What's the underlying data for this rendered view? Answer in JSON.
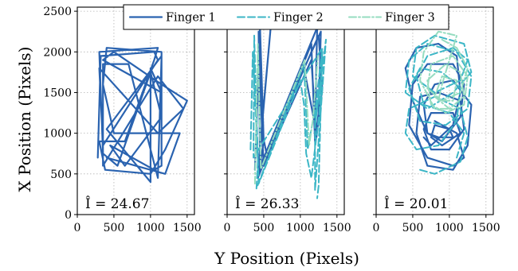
{
  "chart_data": {
    "type": "line",
    "xlabel": "Y Position (Pixels)",
    "ylabel": "X Position (Pixels)",
    "xlim": [
      0,
      1600
    ],
    "ylim": [
      0,
      2550
    ],
    "xticks": [
      0,
      500,
      1000,
      1500
    ],
    "yticks": [
      0,
      500,
      1000,
      1500,
      2000,
      2500
    ],
    "grid": true,
    "legend": {
      "placement": "top-center",
      "entries": [
        "Finger 1",
        "Finger 2",
        "Finger 3"
      ]
    },
    "styles": [
      {
        "color": "#2a63b0",
        "dash": "",
        "width": 2.2
      },
      {
        "color": "#3cb6c6",
        "dash": "9 4",
        "width": 2.0
      },
      {
        "color": "#95dcc0",
        "dash": "9 3 2 3",
        "width": 2.0
      }
    ],
    "panels": [
      {
        "annotation": "Î = 24.67",
        "series": [
          {
            "name": "Finger 1",
            "points": [
              [
                280,
                700
              ],
              [
                320,
                1950
              ],
              [
                1050,
                2000
              ],
              [
                1100,
                1900
              ],
              [
                350,
                850
              ],
              [
                300,
                1800
              ],
              [
                1100,
                1000
              ],
              [
                1450,
                1300
              ],
              [
                1100,
                1700
              ],
              [
                350,
                600
              ],
              [
                350,
                1850
              ],
              [
                700,
                1850
              ],
              [
                1100,
                450
              ],
              [
                1150,
                1950
              ],
              [
                400,
                1050
              ],
              [
                1000,
                400
              ],
              [
                1000,
                1800
              ],
              [
                1150,
                1500
              ],
              [
                350,
                1900
              ],
              [
                500,
                2000
              ],
              [
                1150,
                1600
              ],
              [
                1500,
                1400
              ],
              [
                1200,
                800
              ],
              [
                1000,
                500
              ],
              [
                380,
                550
              ],
              [
                300,
                900
              ],
              [
                650,
                900
              ],
              [
                1050,
                1900
              ],
              [
                1100,
                2050
              ],
              [
                300,
                2000
              ],
              [
                350,
                750
              ],
              [
                550,
                600
              ],
              [
                1000,
                1750
              ],
              [
                1150,
                1200
              ],
              [
                650,
                600
              ],
              [
                450,
                850
              ],
              [
                1050,
                550
              ],
              [
                1150,
                600
              ],
              [
                1150,
                2000
              ],
              [
                400,
                2050
              ],
              [
                350,
                1600
              ],
              [
                500,
                1000
              ],
              [
                900,
                1000
              ],
              [
                1400,
                1000
              ],
              [
                1200,
                500
              ],
              [
                400,
                700
              ]
            ]
          }
        ]
      },
      {
        "annotation": "Î = 26.33",
        "series": [
          {
            "name": "Finger 1",
            "points": [
              [
                380,
                550
              ],
              [
                450,
                2300
              ],
              [
                500,
                900
              ],
              [
                420,
                450
              ],
              [
                1150,
                2100
              ],
              [
                1200,
                900
              ],
              [
                1250,
                1250
              ],
              [
                1280,
                2250
              ],
              [
                450,
                600
              ],
              [
                430,
                2250
              ],
              [
                480,
                950
              ],
              [
                500,
                600
              ],
              [
                1050,
                1800
              ],
              [
                1200,
                1100
              ],
              [
                1230,
                2300
              ],
              [
                420,
                520
              ],
              [
                600,
                2350
              ],
              [
                470,
                1050
              ],
              [
                550,
                700
              ],
              [
                1150,
                1900
              ],
              [
                1220,
                950
              ],
              [
                1300,
                1550
              ],
              [
                1250,
                2200
              ],
              [
                420,
                500
              ]
            ]
          },
          {
            "name": "Finger 2",
            "points": [
              [
                320,
                800
              ],
              [
                350,
                2000
              ],
              [
                420,
                650
              ],
              [
                400,
                320
              ],
              [
                1050,
                1850
              ],
              [
                1100,
                800
              ],
              [
                1180,
                1200
              ],
              [
                1280,
                1650
              ],
              [
                1200,
                1100
              ],
              [
                1350,
                2150
              ],
              [
                1200,
                300
              ],
              [
                1200,
                1250
              ],
              [
                1300,
                2050
              ],
              [
                360,
                700
              ],
              [
                370,
                2200
              ],
              [
                430,
                380
              ],
              [
                1000,
                1650
              ],
              [
                1050,
                1350
              ],
              [
                1080,
                750
              ],
              [
                1150,
                450
              ],
              [
                1260,
                1250
              ],
              [
                1300,
                2000
              ],
              [
                1250,
                350
              ],
              [
                1230,
                200
              ]
            ]
          },
          {
            "name": "Finger 3",
            "points": [
              [
                380,
                380
              ],
              [
                420,
                2100
              ],
              [
                460,
                560
              ],
              [
                1060,
                1900
              ],
              [
                1120,
                850
              ],
              [
                1170,
                1150
              ],
              [
                1240,
                1950
              ]
            ]
          }
        ]
      },
      {
        "annotation": "Î = 20.01",
        "series": [
          {
            "name": "Finger 1",
            "points": [
              [
                800,
                1150
              ],
              [
                1100,
                1000
              ],
              [
                1200,
                700
              ],
              [
                1050,
                600
              ],
              [
                700,
                700
              ],
              [
                450,
                1100
              ],
              [
                500,
                1600
              ],
              [
                700,
                1850
              ],
              [
                1050,
                1850
              ],
              [
                1200,
                1600
              ],
              [
                1150,
                1200
              ],
              [
                900,
                900
              ],
              [
                700,
                1000
              ],
              [
                650,
                1350
              ],
              [
                800,
                1600
              ],
              [
                1050,
                1650
              ],
              [
                1300,
                1350
              ],
              [
                1250,
                850
              ],
              [
                1050,
                550
              ],
              [
                700,
                600
              ],
              [
                550,
                1000
              ],
              [
                600,
                1450
              ],
              [
                850,
                1500
              ],
              [
                1150,
                1400
              ],
              [
                1200,
                1050
              ],
              [
                1000,
                800
              ],
              [
                750,
                800
              ],
              [
                650,
                1050
              ],
              [
                750,
                1250
              ],
              [
                1050,
                1250
              ],
              [
                1150,
                1000
              ],
              [
                900,
                850
              ],
              [
                750,
                950
              ],
              [
                800,
                1100
              ],
              [
                1000,
                1050
              ],
              [
                1050,
                950
              ],
              [
                850,
                950
              ],
              [
                700,
                1000
              ],
              [
                500,
                1400
              ],
              [
                400,
                1800
              ],
              [
                550,
                2050
              ],
              [
                850,
                2100
              ],
              [
                1100,
                1950
              ],
              [
                1150,
                1500
              ],
              [
                1050,
                1100
              ],
              [
                750,
                850
              ],
              [
                650,
                950
              ]
            ]
          },
          {
            "name": "Finger 2",
            "points": [
              [
                600,
                550
              ],
              [
                800,
                500
              ],
              [
                1150,
                650
              ],
              [
                1250,
                950
              ],
              [
                1150,
                1300
              ],
              [
                800,
                1450
              ],
              [
                450,
                1300
              ],
              [
                400,
                1000
              ],
              [
                550,
                800
              ],
              [
                850,
                850
              ],
              [
                1100,
                1150
              ],
              [
                1150,
                1550
              ],
              [
                900,
                1750
              ],
              [
                600,
                1800
              ],
              [
                450,
                1550
              ],
              [
                600,
                1150
              ],
              [
                950,
                1100
              ],
              [
                1250,
                1300
              ],
              [
                1300,
                1700
              ],
              [
                1100,
                2000
              ],
              [
                700,
                2100
              ],
              [
                450,
                1900
              ],
              [
                400,
                1500
              ],
              [
                700,
                1300
              ],
              [
                1050,
                1500
              ],
              [
                1300,
                1750
              ],
              [
                1200,
                2100
              ],
              [
                800,
                2200
              ],
              [
                550,
                2050
              ],
              [
                500,
                1700
              ],
              [
                800,
                1500
              ],
              [
                1150,
                1650
              ],
              [
                1250,
                1900
              ],
              [
                1050,
                2050
              ],
              [
                700,
                1950
              ],
              [
                550,
                1700
              ],
              [
                650,
                1350
              ],
              [
                1000,
                1250
              ],
              [
                1200,
                1000
              ],
              [
                1100,
                700
              ]
            ]
          },
          {
            "name": "Finger 3",
            "points": [
              [
                900,
                2150
              ],
              [
                1100,
                2050
              ],
              [
                1250,
                1800
              ],
              [
                1150,
                1500
              ],
              [
                900,
                1400
              ],
              [
                700,
                1550
              ],
              [
                750,
                1850
              ],
              [
                1050,
                1950
              ],
              [
                1250,
                1700
              ],
              [
                1200,
                1350
              ],
              [
                950,
                1250
              ],
              [
                750,
                1350
              ],
              [
                700,
                1650
              ],
              [
                950,
                1850
              ],
              [
                1150,
                1750
              ],
              [
                1200,
                1450
              ],
              [
                1000,
                1300
              ],
              [
                800,
                1450
              ],
              [
                900,
                1700
              ],
              [
                1100,
                1650
              ],
              [
                1050,
                1400
              ],
              [
                850,
                1400
              ],
              [
                900,
                1600
              ],
              [
                1100,
                2200
              ],
              [
                850,
                2250
              ],
              [
                650,
                2000
              ],
              [
                600,
                1650
              ],
              [
                800,
                1300
              ],
              [
                1050,
                1300
              ]
            ]
          }
        ]
      }
    ]
  }
}
